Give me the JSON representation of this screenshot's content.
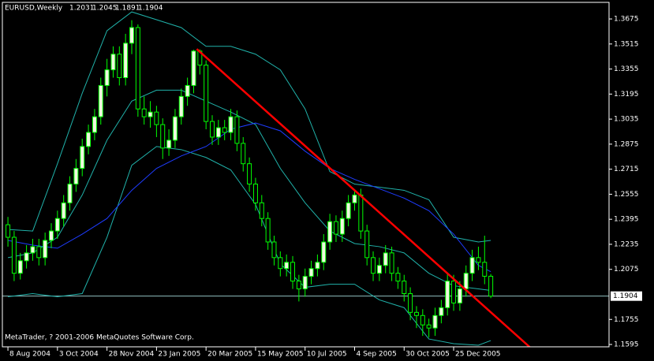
{
  "chart_data": {
    "type": "candlestick",
    "title": "EURUSD,Weekly",
    "watermark": "MetaTrader, ? 2001-2006 MetaQuotes Software Corp.",
    "open": [
      1.236,
      1.228,
      1.205,
      1.213,
      1.218,
      1.222,
      1.215,
      1.226,
      1.232,
      1.24,
      1.25,
      1.262,
      1.272,
      1.286,
      1.295,
      1.305,
      1.325,
      1.335,
      1.345,
      1.33,
      1.352,
      1.362,
      1.31,
      1.305,
      1.308,
      1.3,
      1.285,
      1.29,
      1.305,
      1.318,
      1.325,
      1.347,
      1.338,
      1.302,
      1.292,
      1.298,
      1.295,
      1.305,
      1.288,
      1.275,
      1.262,
      1.25,
      1.24,
      1.225,
      1.215,
      1.208,
      1.212,
      1.2,
      1.195,
      1.203,
      1.208,
      1.212,
      1.225,
      1.238,
      1.23,
      1.24,
      1.25,
      1.255,
      1.232,
      1.215,
      1.205,
      1.21,
      1.218,
      1.205,
      1.2,
      1.192,
      1.18,
      1.178,
      1.172,
      1.17,
      1.178,
      1.183,
      1.2,
      1.186,
      1.195,
      1.205,
      1.215,
      1.212,
      1.2031
    ],
    "high": [
      1.241,
      1.232,
      1.218,
      1.223,
      1.227,
      1.227,
      1.231,
      1.237,
      1.245,
      1.255,
      1.267,
      1.278,
      1.291,
      1.3,
      1.31,
      1.33,
      1.342,
      1.35,
      1.35,
      1.358,
      1.3667,
      1.364,
      1.318,
      1.315,
      1.312,
      1.304,
      1.297,
      1.31,
      1.323,
      1.33,
      1.3478,
      1.348,
      1.341,
      1.306,
      1.303,
      1.303,
      1.31,
      1.309,
      1.292,
      1.279,
      1.266,
      1.255,
      1.244,
      1.229,
      1.219,
      1.217,
      1.216,
      1.204,
      1.208,
      1.213,
      1.217,
      1.23,
      1.243,
      1.242,
      1.245,
      1.255,
      1.258,
      1.259,
      1.236,
      1.219,
      1.215,
      1.223,
      1.222,
      1.209,
      1.204,
      1.196,
      1.184,
      1.182,
      1.176,
      1.183,
      1.188,
      1.205,
      1.204,
      1.2,
      1.21,
      1.22,
      1.222,
      1.229,
      1.2045
    ],
    "low": [
      1.222,
      1.2,
      1.201,
      1.208,
      1.213,
      1.21,
      1.21,
      1.221,
      1.227,
      1.235,
      1.245,
      1.257,
      1.267,
      1.281,
      1.29,
      1.3,
      1.318,
      1.33,
      1.325,
      1.325,
      1.345,
      1.305,
      1.3,
      1.298,
      1.292,
      1.278,
      1.28,
      1.285,
      1.3,
      1.312,
      1.32,
      1.332,
      1.297,
      1.287,
      1.287,
      1.29,
      1.29,
      1.283,
      1.27,
      1.257,
      1.245,
      1.235,
      1.22,
      1.21,
      1.203,
      1.203,
      1.195,
      1.187,
      1.19,
      1.198,
      1.203,
      1.207,
      1.22,
      1.225,
      1.225,
      1.235,
      1.245,
      1.227,
      1.21,
      1.2,
      1.2,
      1.205,
      1.2,
      1.195,
      1.187,
      1.175,
      1.17,
      1.165,
      1.164,
      1.165,
      1.173,
      1.178,
      1.181,
      1.181,
      1.19,
      1.2,
      1.207,
      1.198,
      1.1891
    ],
    "close": [
      1.228,
      1.205,
      1.213,
      1.218,
      1.222,
      1.215,
      1.226,
      1.232,
      1.24,
      1.25,
      1.262,
      1.272,
      1.286,
      1.295,
      1.305,
      1.325,
      1.335,
      1.345,
      1.33,
      1.352,
      1.362,
      1.31,
      1.305,
      1.308,
      1.3,
      1.285,
      1.29,
      1.305,
      1.318,
      1.325,
      1.347,
      1.338,
      1.302,
      1.292,
      1.298,
      1.295,
      1.305,
      1.288,
      1.275,
      1.262,
      1.25,
      1.24,
      1.225,
      1.215,
      1.208,
      1.212,
      1.2,
      1.195,
      1.203,
      1.208,
      1.212,
      1.225,
      1.238,
      1.23,
      1.24,
      1.25,
      1.255,
      1.232,
      1.215,
      1.205,
      1.21,
      1.218,
      1.205,
      1.2,
      1.192,
      1.18,
      1.178,
      1.172,
      1.17,
      1.178,
      1.183,
      1.2,
      1.186,
      1.195,
      1.205,
      1.215,
      1.212,
      1.2031,
      1.1904
    ],
    "bull_color": "#f0f8e0",
    "bear_color": "#000000",
    "wick_color": "#00ff00",
    "overlay_x": [
      0,
      4,
      8,
      12,
      16,
      20,
      24,
      28,
      32,
      36,
      40,
      44,
      48,
      52,
      56,
      60,
      64,
      68,
      72,
      76,
      78
    ],
    "overlays": [
      {
        "color": "#20b2aa",
        "values": [
          1.233,
          1.232,
          1.275,
          1.32,
          1.36,
          1.372,
          1.367,
          1.362,
          1.35,
          1.35,
          1.345,
          1.335,
          1.31,
          1.27,
          1.262,
          1.26,
          1.258,
          1.252,
          1.228,
          1.225,
          1.226
        ]
      },
      {
        "color": "#20b2aa",
        "values": [
          1.215,
          1.218,
          1.228,
          1.255,
          1.29,
          1.315,
          1.322,
          1.322,
          1.315,
          1.308,
          1.3,
          1.272,
          1.25,
          1.232,
          1.224,
          1.222,
          1.218,
          1.205,
          1.197,
          1.195,
          1.194
        ]
      },
      {
        "color": "#20b2aa",
        "values": [
          1.19,
          1.192,
          1.19,
          1.192,
          1.228,
          1.274,
          1.286,
          1.284,
          1.279,
          1.271,
          1.249,
          1.211,
          1.196,
          1.198,
          1.198,
          1.188,
          1.183,
          1.163,
          1.16,
          1.159,
          1.162
        ]
      },
      {
        "color": "#1e3cff",
        "values": [
          1.226,
          1.223,
          1.221,
          1.23,
          1.24,
          1.258,
          1.272,
          1.28,
          1.286,
          1.297,
          1.301,
          1.296,
          1.283,
          1.272,
          1.265,
          1.259,
          1.253,
          1.245,
          1.23,
          1.21,
          1.206
        ]
      }
    ],
    "trendline": {
      "color": "#ff0000",
      "x": [
        30.5,
        84.3
      ],
      "values": [
        1.3483,
        1.1578
      ]
    },
    "price_line_color": "#8fbfbf",
    "xlim": [
      -0.9,
      97.1
    ],
    "ylim": [
      1.158,
      1.3781
    ],
    "yticks": [
      1.3675,
      1.3515,
      1.3355,
      1.3195,
      1.3035,
      1.2875,
      1.2715,
      1.2555,
      1.2395,
      1.2235,
      1.2075,
      1.1755,
      1.1595
    ],
    "xticks": [
      {
        "value": 0,
        "label": "8 Aug 2004"
      },
      {
        "value": 8,
        "label": "3 Oct 2004"
      },
      {
        "value": 16,
        "label": "28 Nov 2004"
      },
      {
        "value": 24,
        "label": "23 Jan 2005"
      },
      {
        "value": 32,
        "label": "20 Mar 2005"
      },
      {
        "value": 40,
        "label": "15 May 2005"
      },
      {
        "value": 48,
        "label": "10 Jul 2005"
      },
      {
        "value": 56,
        "label": "4 Sep 2005"
      },
      {
        "value": 64,
        "label": "30 Oct 2005"
      },
      {
        "value": 72,
        "label": "25 Dec 2005"
      }
    ]
  }
}
